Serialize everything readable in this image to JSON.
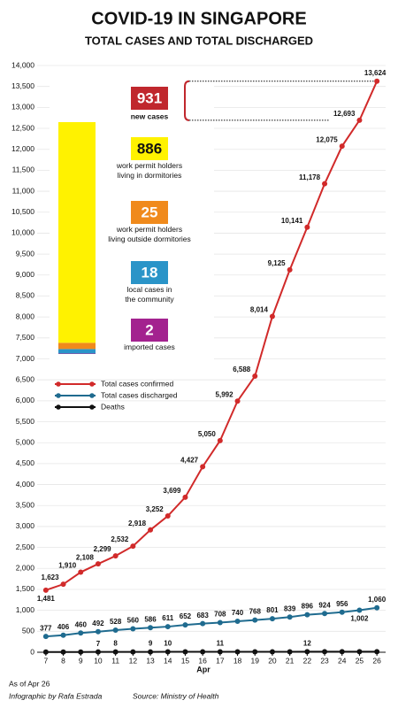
{
  "chart_data": {
    "type": "line",
    "title": "COVID-19 IN SINGAPORE",
    "subtitle": "TOTAL CASES AND TOTAL DISCHARGED",
    "x_label": "Apr",
    "x": [
      7,
      8,
      9,
      10,
      11,
      12,
      13,
      14,
      15,
      16,
      17,
      18,
      19,
      20,
      21,
      22,
      23,
      24,
      25,
      26
    ],
    "xlim": [
      6.5,
      26.5
    ],
    "xticks": [
      7,
      8,
      9,
      10,
      11,
      12,
      13,
      14,
      15,
      16,
      17,
      18,
      19,
      20,
      21,
      22,
      23,
      24,
      25,
      26
    ],
    "ylim": [
      0,
      14000
    ],
    "yticks": [
      0,
      500,
      {
        "value": 1000,
        "label": "1,000"
      },
      {
        "value": 1500,
        "label": "1,500"
      },
      {
        "value": 2000,
        "label": "2,000"
      },
      {
        "value": 2500,
        "label": "2,500"
      },
      {
        "value": 3000,
        "label": "3,000"
      },
      {
        "value": 3500,
        "label": "3,500"
      },
      {
        "value": 4000,
        "label": "4,000"
      },
      {
        "value": 4500,
        "label": "4,500"
      },
      {
        "value": 5000,
        "label": "5,000"
      },
      {
        "value": 5500,
        "label": "5,500"
      },
      {
        "value": 6000,
        "label": "6,000"
      },
      {
        "value": 6500,
        "label": "6,500"
      },
      {
        "value": 7000,
        "label": "7,000"
      },
      {
        "value": 7500,
        "label": "7,500"
      },
      {
        "value": 8000,
        "label": "8,000"
      },
      {
        "value": 8500,
        "label": "8,500"
      },
      {
        "value": 9000,
        "label": "9,000"
      },
      {
        "value": 9500,
        "label": "9,500"
      },
      {
        "value": 10000,
        "label": "10,000"
      },
      {
        "value": 10500,
        "label": "10,500"
      },
      {
        "value": 11000,
        "label": "11,000"
      },
      {
        "value": 11500,
        "label": "11,500"
      },
      {
        "value": 12000,
        "label": "12,000"
      },
      {
        "value": 12500,
        "label": "12,500"
      },
      {
        "value": 13000,
        "label": "13,000"
      },
      {
        "value": 13500,
        "label": "13,500"
      },
      {
        "value": 14000,
        "label": "14,000"
      }
    ],
    "grid": true,
    "series": [
      {
        "name": "Total cases confirmed",
        "color": "#d12a2a",
        "values": [
          1481,
          1623,
          1910,
          2108,
          2299,
          2532,
          2918,
          3252,
          3699,
          4427,
          5050,
          5992,
          6588,
          8014,
          9125,
          10141,
          11178,
          12075,
          12693,
          13624
        ],
        "value_labels": [
          "1,481",
          "1,623",
          "1,910",
          "2,108",
          "2,299",
          "2,532",
          "2,918",
          "3,252",
          "3,699",
          "4,427",
          "5,050",
          "5,992",
          "6,588",
          "8,014",
          "9,125",
          "10,141",
          "11,178",
          "12,075",
          "12,693",
          "13,624"
        ]
      },
      {
        "name": "Total cases discharged",
        "color": "#1f6b8f",
        "values": [
          377,
          406,
          460,
          492,
          528,
          560,
          586,
          611,
          652,
          683,
          708,
          740,
          768,
          801,
          839,
          896,
          924,
          956,
          1002,
          1060
        ],
        "value_labels": [
          "377",
          "406",
          "460",
          "492",
          "528",
          "560",
          "586",
          "611",
          "652",
          "683",
          "708",
          "740",
          "768",
          "801",
          "839",
          "896",
          "924",
          "956",
          "1,002",
          "1,060"
        ]
      },
      {
        "name": "Deaths",
        "color": "#111111",
        "values": [
          6,
          6,
          6,
          7,
          8,
          8,
          9,
          10,
          10,
          10,
          11,
          11,
          11,
          11,
          11,
          12,
          12,
          12,
          12,
          12
        ],
        "value_labels": [
          null,
          null,
          null,
          "7",
          "8",
          null,
          "9",
          "10",
          null,
          null,
          "11",
          null,
          null,
          null,
          null,
          "12",
          null,
          null,
          null,
          null
        ]
      }
    ],
    "breakdown": {
      "total": 931,
      "total_label": "new cases",
      "total_color": "#c0272d",
      "segments": [
        {
          "value": 2,
          "name": "imported cases",
          "color": "#a3228f"
        },
        {
          "value": 18,
          "name": "local cases in\nthe community",
          "color": "#2a94c8"
        },
        {
          "value": 25,
          "name": "work permit holders\nliving outside dormitories",
          "color": "#f08a1c"
        },
        {
          "value": 886,
          "name": "work permit holders\nliving in dormitories",
          "color": "#fff200"
        }
      ]
    },
    "footer": {
      "date": "As of Apr 26",
      "credit": "Infographic by Rafa Estrada",
      "source": "Source: Ministry of Health"
    }
  }
}
